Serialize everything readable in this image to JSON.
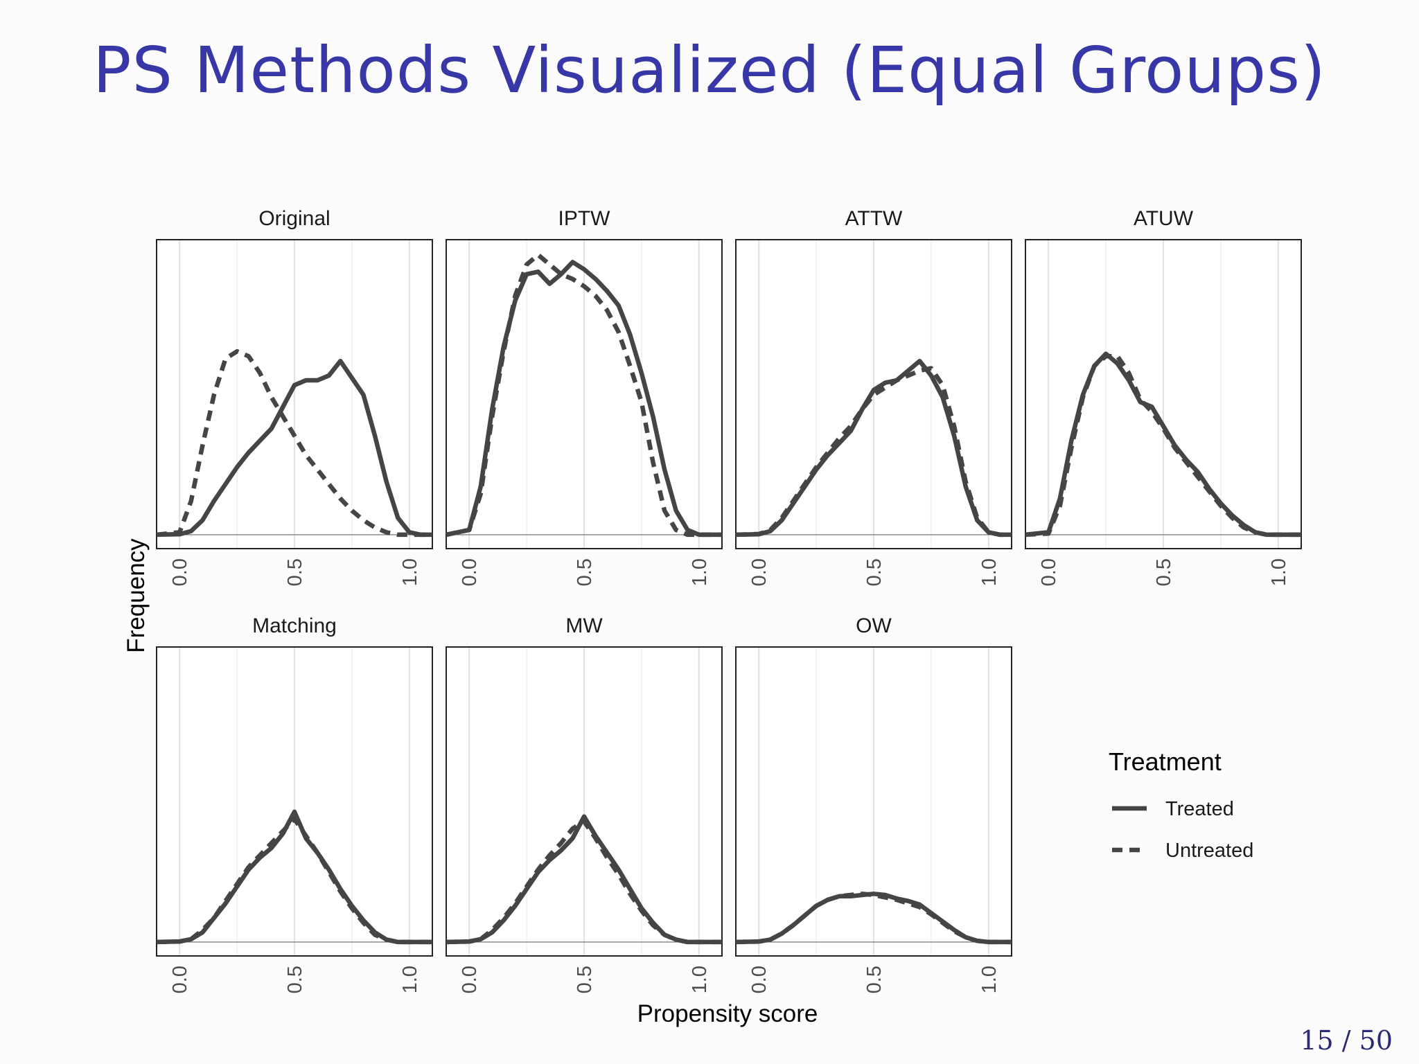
{
  "slide": {
    "title": "PS Methods Visualized (Equal Groups)",
    "page_number": "15 / 50"
  },
  "chart_data": {
    "type": "line",
    "xlabel": "Propensity score",
    "ylabel": "Frequency",
    "xlim": [
      -0.1,
      1.1
    ],
    "xticks": [
      "0.0",
      "0.5",
      "1.0"
    ],
    "y_axis_labels_shown": false,
    "grid": "vertical only",
    "legend": {
      "title": "Treatment",
      "position": "right",
      "entries": [
        {
          "name": "Treated",
          "style": "solid"
        },
        {
          "name": "Untreated",
          "style": "dashed"
        }
      ]
    },
    "line_color": "#454545",
    "panels": [
      {
        "label": "Original",
        "series": [
          {
            "name": "Treated",
            "x": [
              -0.1,
              0.0,
              0.05,
              0.1,
              0.15,
              0.2,
              0.25,
              0.3,
              0.35,
              0.4,
              0.45,
              0.5,
              0.55,
              0.6,
              0.65,
              0.7,
              0.75,
              0.8,
              0.85,
              0.9,
              0.95,
              1.0,
              1.05,
              1.1
            ],
            "y": [
              0,
              0.002,
              0.015,
              0.06,
              0.14,
              0.21,
              0.28,
              0.34,
              0.39,
              0.44,
              0.53,
              0.62,
              0.64,
              0.64,
              0.66,
              0.72,
              0.65,
              0.58,
              0.41,
              0.22,
              0.07,
              0.01,
              0,
              0
            ]
          },
          {
            "name": "Untreated",
            "x": [
              -0.1,
              0.0,
              0.05,
              0.1,
              0.15,
              0.2,
              0.25,
              0.3,
              0.35,
              0.4,
              0.45,
              0.5,
              0.55,
              0.6,
              0.65,
              0.7,
              0.75,
              0.8,
              0.85,
              0.9,
              0.95,
              1.0,
              1.05,
              1.1
            ],
            "y": [
              0,
              0.01,
              0.14,
              0.37,
              0.58,
              0.73,
              0.76,
              0.74,
              0.67,
              0.57,
              0.49,
              0.41,
              0.33,
              0.27,
              0.21,
              0.15,
              0.1,
              0.06,
              0.03,
              0.01,
              0,
              0,
              0,
              0
            ]
          }
        ]
      },
      {
        "label": "IPTW",
        "series": [
          {
            "name": "Treated",
            "x": [
              -0.1,
              0.0,
              0.05,
              0.1,
              0.15,
              0.2,
              0.25,
              0.3,
              0.35,
              0.4,
              0.45,
              0.5,
              0.55,
              0.6,
              0.65,
              0.7,
              0.75,
              0.8,
              0.85,
              0.9,
              0.95,
              1.0,
              1.05,
              1.1
            ],
            "y": [
              0,
              0.02,
              0.2,
              0.52,
              0.78,
              0.97,
              1.08,
              1.09,
              1.04,
              1.08,
              1.13,
              1.1,
              1.06,
              1.01,
              0.95,
              0.83,
              0.67,
              0.49,
              0.27,
              0.1,
              0.02,
              0,
              0,
              0
            ]
          },
          {
            "name": "Untreated",
            "x": [
              -0.1,
              0.0,
              0.05,
              0.1,
              0.15,
              0.2,
              0.25,
              0.3,
              0.35,
              0.4,
              0.45,
              0.5,
              0.55,
              0.6,
              0.65,
              0.7,
              0.75,
              0.8,
              0.85,
              0.9,
              0.95,
              1.0,
              1.05,
              1.1
            ],
            "y": [
              0,
              0.02,
              0.17,
              0.49,
              0.76,
              0.99,
              1.12,
              1.16,
              1.12,
              1.08,
              1.06,
              1.03,
              0.99,
              0.93,
              0.84,
              0.7,
              0.55,
              0.3,
              0.1,
              0.02,
              0,
              0,
              0,
              0
            ]
          }
        ]
      },
      {
        "label": "ATTW",
        "series": [
          {
            "name": "Treated",
            "x": [
              -0.1,
              0.0,
              0.05,
              0.1,
              0.15,
              0.2,
              0.25,
              0.3,
              0.35,
              0.4,
              0.45,
              0.5,
              0.55,
              0.6,
              0.65,
              0.7,
              0.75,
              0.8,
              0.85,
              0.9,
              0.95,
              1.0,
              1.05,
              1.1
            ],
            "y": [
              0,
              0.002,
              0.015,
              0.06,
              0.13,
              0.2,
              0.27,
              0.33,
              0.38,
              0.43,
              0.52,
              0.6,
              0.63,
              0.64,
              0.68,
              0.72,
              0.66,
              0.57,
              0.41,
              0.2,
              0.06,
              0.01,
              0,
              0
            ]
          },
          {
            "name": "Untreated",
            "x": [
              -0.1,
              0.0,
              0.05,
              0.1,
              0.15,
              0.2,
              0.25,
              0.3,
              0.35,
              0.4,
              0.45,
              0.5,
              0.55,
              0.6,
              0.65,
              0.7,
              0.75,
              0.8,
              0.85,
              0.9,
              0.95,
              1.0,
              1.05,
              1.1
            ],
            "y": [
              0,
              0.003,
              0.02,
              0.07,
              0.14,
              0.21,
              0.28,
              0.34,
              0.4,
              0.45,
              0.52,
              0.58,
              0.61,
              0.64,
              0.66,
              0.68,
              0.69,
              0.62,
              0.45,
              0.22,
              0.07,
              0.01,
              0,
              0
            ]
          }
        ]
      },
      {
        "label": "ATUW",
        "series": [
          {
            "name": "Treated",
            "x": [
              -0.1,
              0.0,
              0.05,
              0.1,
              0.15,
              0.2,
              0.25,
              0.3,
              0.35,
              0.4,
              0.45,
              0.5,
              0.55,
              0.6,
              0.65,
              0.7,
              0.75,
              0.8,
              0.85,
              0.9,
              0.95,
              1.0,
              1.05,
              1.1
            ],
            "y": [
              0,
              0.01,
              0.15,
              0.39,
              0.58,
              0.7,
              0.75,
              0.71,
              0.64,
              0.55,
              0.53,
              0.45,
              0.37,
              0.31,
              0.26,
              0.19,
              0.13,
              0.08,
              0.04,
              0.01,
              0,
              0,
              0,
              0
            ]
          },
          {
            "name": "Untreated",
            "x": [
              -0.1,
              0.0,
              0.05,
              0.1,
              0.15,
              0.2,
              0.25,
              0.3,
              0.35,
              0.4,
              0.45,
              0.5,
              0.55,
              0.6,
              0.65,
              0.7,
              0.75,
              0.8,
              0.85,
              0.9,
              0.95,
              1.0,
              1.05,
              1.1
            ],
            "y": [
              0,
              0.005,
              0.12,
              0.36,
              0.57,
              0.7,
              0.74,
              0.74,
              0.67,
              0.56,
              0.51,
              0.44,
              0.36,
              0.3,
              0.24,
              0.18,
              0.12,
              0.07,
              0.03,
              0.01,
              0,
              0,
              0,
              0
            ]
          }
        ]
      },
      {
        "label": "Matching",
        "series": [
          {
            "name": "Treated",
            "x": [
              -0.1,
              0.0,
              0.05,
              0.1,
              0.15,
              0.2,
              0.25,
              0.3,
              0.35,
              0.4,
              0.45,
              0.5,
              0.55,
              0.6,
              0.65,
              0.7,
              0.75,
              0.8,
              0.85,
              0.9,
              0.95,
              1.0,
              1.05,
              1.1
            ],
            "y": [
              0,
              0.002,
              0.012,
              0.04,
              0.1,
              0.16,
              0.23,
              0.3,
              0.35,
              0.39,
              0.45,
              0.54,
              0.43,
              0.37,
              0.3,
              0.22,
              0.15,
              0.09,
              0.04,
              0.01,
              0,
              0,
              0,
              0
            ]
          },
          {
            "name": "Untreated",
            "x": [
              -0.1,
              0.0,
              0.05,
              0.1,
              0.15,
              0.2,
              0.25,
              0.3,
              0.35,
              0.4,
              0.45,
              0.5,
              0.55,
              0.6,
              0.65,
              0.7,
              0.75,
              0.8,
              0.85,
              0.9,
              0.95,
              1.0,
              1.05,
              1.1
            ],
            "y": [
              0,
              0.002,
              0.012,
              0.05,
              0.1,
              0.17,
              0.24,
              0.31,
              0.36,
              0.41,
              0.46,
              0.51,
              0.44,
              0.37,
              0.29,
              0.21,
              0.14,
              0.08,
              0.03,
              0.01,
              0,
              0,
              0,
              0
            ]
          }
        ]
      },
      {
        "label": "MW",
        "series": [
          {
            "name": "Treated",
            "x": [
              -0.1,
              0.0,
              0.05,
              0.1,
              0.15,
              0.2,
              0.25,
              0.3,
              0.35,
              0.4,
              0.45,
              0.5,
              0.55,
              0.6,
              0.65,
              0.7,
              0.75,
              0.8,
              0.85,
              0.9,
              0.95,
              1.0,
              1.05,
              1.1
            ],
            "y": [
              0,
              0.002,
              0.012,
              0.04,
              0.09,
              0.15,
              0.22,
              0.29,
              0.34,
              0.38,
              0.43,
              0.52,
              0.44,
              0.37,
              0.3,
              0.22,
              0.14,
              0.08,
              0.03,
              0.01,
              0,
              0,
              0,
              0
            ]
          },
          {
            "name": "Untreated",
            "x": [
              -0.1,
              0.0,
              0.05,
              0.1,
              0.15,
              0.2,
              0.25,
              0.3,
              0.35,
              0.4,
              0.45,
              0.5,
              0.55,
              0.6,
              0.65,
              0.7,
              0.75,
              0.8,
              0.85,
              0.9,
              0.95,
              1.0,
              1.05,
              1.1
            ],
            "y": [
              0,
              0.002,
              0.012,
              0.05,
              0.1,
              0.16,
              0.23,
              0.3,
              0.36,
              0.41,
              0.47,
              0.5,
              0.43,
              0.35,
              0.28,
              0.2,
              0.13,
              0.07,
              0.03,
              0.01,
              0,
              0,
              0,
              0
            ]
          }
        ]
      },
      {
        "label": "OW",
        "series": [
          {
            "name": "Treated",
            "x": [
              -0.1,
              0.0,
              0.05,
              0.1,
              0.15,
              0.2,
              0.25,
              0.3,
              0.35,
              0.4,
              0.45,
              0.5,
              0.55,
              0.6,
              0.65,
              0.7,
              0.75,
              0.8,
              0.85,
              0.9,
              0.95,
              1.0,
              1.05,
              1.1
            ],
            "y": [
              0,
              0.002,
              0.01,
              0.035,
              0.07,
              0.11,
              0.15,
              0.175,
              0.19,
              0.19,
              0.195,
              0.2,
              0.195,
              0.18,
              0.17,
              0.155,
              0.12,
              0.085,
              0.05,
              0.02,
              0.005,
              0,
              0,
              0
            ]
          },
          {
            "name": "Untreated",
            "x": [
              -0.1,
              0.0,
              0.05,
              0.1,
              0.15,
              0.2,
              0.25,
              0.3,
              0.35,
              0.4,
              0.45,
              0.5,
              0.55,
              0.6,
              0.65,
              0.7,
              0.75,
              0.8,
              0.85,
              0.9,
              0.95,
              1.0,
              1.05,
              1.1
            ],
            "y": [
              0,
              0.002,
              0.01,
              0.035,
              0.07,
              0.11,
              0.15,
              0.175,
              0.19,
              0.195,
              0.2,
              0.195,
              0.185,
              0.175,
              0.16,
              0.145,
              0.115,
              0.08,
              0.045,
              0.02,
              0.005,
              0,
              0,
              0
            ]
          }
        ]
      }
    ]
  }
}
